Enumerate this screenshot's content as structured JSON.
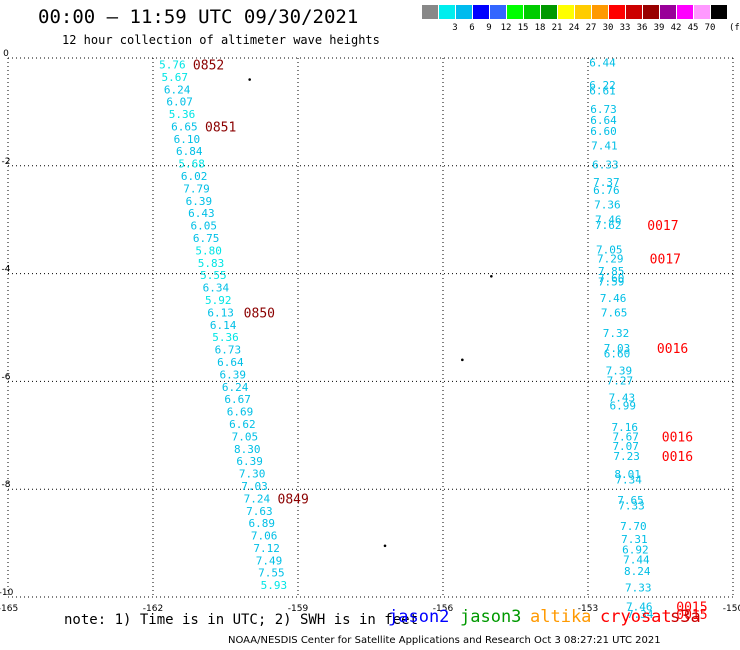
{
  "header": {
    "title": "00:00 – 11:59 UTC 09/30/2021",
    "subtitle": "12 hour collection of altimeter wave heights"
  },
  "legend": {
    "unit": "(ft)",
    "bins": [
      {
        "label": "",
        "color": "#888888"
      },
      {
        "label": "3",
        "color": "#00eeee"
      },
      {
        "label": "6",
        "color": "#00bbee"
      },
      {
        "label": "9",
        "color": "#0000ff"
      },
      {
        "label": "12",
        "color": "#3366ff"
      },
      {
        "label": "15",
        "color": "#00ff00"
      },
      {
        "label": "18",
        "color": "#00cc00"
      },
      {
        "label": "21",
        "color": "#009900"
      },
      {
        "label": "24",
        "color": "#ffff00"
      },
      {
        "label": "27",
        "color": "#ffcc00"
      },
      {
        "label": "30",
        "color": "#ff9900"
      },
      {
        "label": "33",
        "color": "#ff0000"
      },
      {
        "label": "36",
        "color": "#cc0000"
      },
      {
        "label": "39",
        "color": "#990000"
      },
      {
        "label": "42",
        "color": "#990099"
      },
      {
        "label": "45",
        "color": "#ff00ff"
      },
      {
        "label": "70",
        "color": "#ff99ff"
      },
      {
        "label": "",
        "color": "#000000"
      }
    ]
  },
  "axes": {
    "lon_labels": [
      "-165",
      "-162",
      "-159",
      "-156",
      "-153",
      "-150"
    ],
    "lat_labels": [
      "0",
      "-2",
      "-4",
      "-6",
      "-8",
      "-10"
    ]
  },
  "chart_data": {
    "type": "scatter",
    "xlim": [
      -165,
      -150
    ],
    "ylim": [
      -10,
      0
    ],
    "grid": true,
    "tracks": [
      {
        "color": "#00bfe6",
        "points": [
          {
            "x": -161.6,
            "y": -0.12,
            "v": "5.76",
            "c": "#00e5e5"
          },
          {
            "x": -161.55,
            "y": -0.35,
            "v": "5.67",
            "c": "#00e5e5"
          },
          {
            "x": -161.5,
            "y": -0.58,
            "v": "6.24",
            "c": "#00bfe6"
          },
          {
            "x": -161.45,
            "y": -0.81,
            "v": "6.07",
            "c": "#00bfe6"
          },
          {
            "x": -161.4,
            "y": -1.04,
            "v": "5.36",
            "c": "#00e5e5"
          },
          {
            "x": -161.35,
            "y": -1.27,
            "v": "6.65",
            "c": "#00bfe6"
          },
          {
            "x": -161.3,
            "y": -1.5,
            "v": "6.10",
            "c": "#00bfe6"
          },
          {
            "x": -161.25,
            "y": -1.73,
            "v": "6.84",
            "c": "#00bfe6"
          },
          {
            "x": -161.2,
            "y": -1.96,
            "v": "5.68",
            "c": "#00e5e5"
          },
          {
            "x": -161.15,
            "y": -2.19,
            "v": "6.02",
            "c": "#00bfe6"
          },
          {
            "x": -161.1,
            "y": -2.42,
            "v": "7.79",
            "c": "#00bfe6"
          },
          {
            "x": -161.05,
            "y": -2.65,
            "v": "6.39",
            "c": "#00bfe6"
          },
          {
            "x": -161.0,
            "y": -2.88,
            "v": "6.43",
            "c": "#00bfe6"
          },
          {
            "x": -160.95,
            "y": -3.11,
            "v": "6.05",
            "c": "#00bfe6"
          },
          {
            "x": -160.9,
            "y": -3.34,
            "v": "6.75",
            "c": "#00bfe6"
          },
          {
            "x": -160.85,
            "y": -3.57,
            "v": "5.80",
            "c": "#00e5e5"
          },
          {
            "x": -160.8,
            "y": -3.8,
            "v": "5.83",
            "c": "#00e5e5"
          },
          {
            "x": -160.75,
            "y": -4.03,
            "v": "5.55",
            "c": "#00e5e5"
          },
          {
            "x": -160.7,
            "y": -4.26,
            "v": "6.34",
            "c": "#00bfe6"
          },
          {
            "x": -160.65,
            "y": -4.49,
            "v": "5.92",
            "c": "#00e5e5"
          },
          {
            "x": -160.6,
            "y": -4.72,
            "v": "6.13",
            "c": "#00bfe6"
          },
          {
            "x": -160.55,
            "y": -4.95,
            "v": "6.14",
            "c": "#00bfe6"
          },
          {
            "x": -160.5,
            "y": -5.18,
            "v": "5.36",
            "c": "#00e5e5"
          },
          {
            "x": -160.45,
            "y": -5.41,
            "v": "6.73",
            "c": "#00bfe6"
          },
          {
            "x": -160.4,
            "y": -5.64,
            "v": "6.64",
            "c": "#00bfe6"
          },
          {
            "x": -160.35,
            "y": -5.87,
            "v": "6.39",
            "c": "#00bfe6"
          },
          {
            "x": -160.3,
            "y": -6.1,
            "v": "6.24",
            "c": "#00bfe6"
          },
          {
            "x": -160.25,
            "y": -6.33,
            "v": "6.67",
            "c": "#00bfe6"
          },
          {
            "x": -160.2,
            "y": -6.56,
            "v": "6.69",
            "c": "#00bfe6"
          },
          {
            "x": -160.15,
            "y": -6.79,
            "v": "6.62",
            "c": "#00bfe6"
          },
          {
            "x": -160.1,
            "y": -7.02,
            "v": "7.05",
            "c": "#00bfe6"
          },
          {
            "x": -160.05,
            "y": -7.25,
            "v": "8.30",
            "c": "#00bfe6"
          },
          {
            "x": -160.0,
            "y": -7.48,
            "v": "6.39",
            "c": "#00bfe6"
          },
          {
            "x": -159.95,
            "y": -7.71,
            "v": "7.30",
            "c": "#00bfe6"
          },
          {
            "x": -159.9,
            "y": -7.94,
            "v": "7.03",
            "c": "#00bfe6"
          },
          {
            "x": -159.85,
            "y": -8.17,
            "v": "7.24",
            "c": "#00bfe6"
          },
          {
            "x": -159.8,
            "y": -8.4,
            "v": "7.63",
            "c": "#00bfe6"
          },
          {
            "x": -159.75,
            "y": -8.63,
            "v": "6.89",
            "c": "#00bfe6"
          },
          {
            "x": -159.7,
            "y": -8.86,
            "v": "7.06",
            "c": "#00bfe6"
          },
          {
            "x": -159.65,
            "y": -9.09,
            "v": "7.12",
            "c": "#00bfe6"
          },
          {
            "x": -159.6,
            "y": -9.32,
            "v": "7.49",
            "c": "#00bfe6"
          },
          {
            "x": -159.55,
            "y": -9.55,
            "v": "7.55",
            "c": "#00bfe6"
          },
          {
            "x": -159.5,
            "y": -9.78,
            "v": "5.93",
            "c": "#00e5e5"
          }
        ],
        "times": [
          {
            "x": -160.85,
            "y": -0.12,
            "t": "0852",
            "c": "#8b0000"
          },
          {
            "x": -160.6,
            "y": -1.27,
            "t": "0851",
            "c": "#8b0000"
          },
          {
            "x": -159.8,
            "y": -4.72,
            "t": "0850",
            "c": "#8b0000"
          },
          {
            "x": -159.1,
            "y": -8.17,
            "t": "0849",
            "c": "#8b0000"
          }
        ]
      },
      {
        "color": "#00bfe6",
        "points": [
          {
            "x": -152.7,
            "y": -0.08,
            "v": "6.44",
            "c": "#00bfe6"
          },
          {
            "x": -152.7,
            "y": -0.5,
            "v": "6.22",
            "c": "#00bfe6"
          },
          {
            "x": -152.7,
            "y": -0.6,
            "v": "6.61",
            "c": "#00bfe6"
          },
          {
            "x": -152.68,
            "y": -0.95,
            "v": "6.73",
            "c": "#00bfe6"
          },
          {
            "x": -152.68,
            "y": -1.15,
            "v": "6.64",
            "c": "#00bfe6"
          },
          {
            "x": -152.68,
            "y": -1.35,
            "v": "6.60",
            "c": "#00bfe6"
          },
          {
            "x": -152.66,
            "y": -1.62,
            "v": "7.41",
            "c": "#00bfe6"
          },
          {
            "x": -152.64,
            "y": -1.98,
            "v": "6.33",
            "c": "#00bfe6"
          },
          {
            "x": -152.62,
            "y": -2.3,
            "v": "7.37",
            "c": "#00bfe6"
          },
          {
            "x": -152.62,
            "y": -2.45,
            "v": "6.76",
            "c": "#00bfe6"
          },
          {
            "x": -152.6,
            "y": -2.72,
            "v": "7.36",
            "c": "#00bfe6"
          },
          {
            "x": -152.58,
            "y": -3.0,
            "v": "7.46",
            "c": "#00bfe6"
          },
          {
            "x": -152.58,
            "y": -3.1,
            "v": "7.62",
            "c": "#00bfe6"
          },
          {
            "x": -152.56,
            "y": -3.55,
            "v": "7.05",
            "c": "#00bfe6"
          },
          {
            "x": -152.54,
            "y": -3.72,
            "v": "7.29",
            "c": "#00bfe6"
          },
          {
            "x": -152.52,
            "y": -3.95,
            "v": "7.85",
            "c": "#00bfe6"
          },
          {
            "x": -152.52,
            "y": -4.08,
            "v": "7.60",
            "c": "#00bfe6"
          },
          {
            "x": -152.52,
            "y": -4.15,
            "v": "7.59",
            "c": "#00bfe6"
          },
          {
            "x": -152.48,
            "y": -4.45,
            "v": "7.46",
            "c": "#00bfe6"
          },
          {
            "x": -152.46,
            "y": -4.72,
            "v": "7.65",
            "c": "#00bfe6"
          },
          {
            "x": -152.42,
            "y": -5.1,
            "v": "7.32",
            "c": "#00bfe6"
          },
          {
            "x": -152.4,
            "y": -5.38,
            "v": "7.03",
            "c": "#00bfe6"
          },
          {
            "x": -152.4,
            "y": -5.48,
            "v": "6.60",
            "c": "#00bfe6"
          },
          {
            "x": -152.36,
            "y": -5.8,
            "v": "7.39",
            "c": "#00bfe6"
          },
          {
            "x": -152.34,
            "y": -5.98,
            "v": "7.27",
            "c": "#00bfe6"
          },
          {
            "x": -152.3,
            "y": -6.3,
            "v": "7.43",
            "c": "#00bfe6"
          },
          {
            "x": -152.28,
            "y": -6.45,
            "v": "6.99",
            "c": "#00bfe6"
          },
          {
            "x": -152.24,
            "y": -6.85,
            "v": "7.16",
            "c": "#00bfe6"
          },
          {
            "x": -152.22,
            "y": -7.02,
            "v": "7.67",
            "c": "#00bfe6"
          },
          {
            "x": -152.22,
            "y": -7.2,
            "v": "7.07",
            "c": "#00bfe6"
          },
          {
            "x": -152.2,
            "y": -7.38,
            "v": "7.23",
            "c": "#00bfe6"
          },
          {
            "x": -152.18,
            "y": -7.72,
            "v": "8.01",
            "c": "#00bfe6"
          },
          {
            "x": -152.16,
            "y": -7.82,
            "v": "7.34",
            "c": "#00bfe6"
          },
          {
            "x": -152.12,
            "y": -8.2,
            "v": "7.65",
            "c": "#00bfe6"
          },
          {
            "x": -152.1,
            "y": -8.3,
            "v": "7.33",
            "c": "#00bfe6"
          },
          {
            "x": -152.06,
            "y": -8.68,
            "v": "7.70",
            "c": "#00bfe6"
          },
          {
            "x": -152.04,
            "y": -8.92,
            "v": "7.31",
            "c": "#00bfe6"
          },
          {
            "x": -152.02,
            "y": -9.12,
            "v": "6.92",
            "c": "#00bfe6"
          },
          {
            "x": -152.0,
            "y": -9.3,
            "v": "7.44",
            "c": "#00bfe6"
          },
          {
            "x": -151.98,
            "y": -9.52,
            "v": "8.24",
            "c": "#00bfe6"
          },
          {
            "x": -151.96,
            "y": -9.82,
            "v": "7.33",
            "c": "#00bfe6"
          },
          {
            "x": -151.94,
            "y": -10.18,
            "v": "7.46",
            "c": "#00bfe6"
          },
          {
            "x": -151.92,
            "y": -10.32,
            "v": "7.34",
            "c": "#00bfe6"
          }
        ],
        "times": [
          {
            "x": -151.45,
            "y": -3.1,
            "t": "0017",
            "c": "#ff0000"
          },
          {
            "x": -151.4,
            "y": -3.72,
            "t": "0017",
            "c": "#ff0000"
          },
          {
            "x": -151.25,
            "y": -5.38,
            "t": "0016",
            "c": "#ff0000"
          },
          {
            "x": -151.15,
            "y": -7.02,
            "t": "0016",
            "c": "#ff0000"
          },
          {
            "x": -151.15,
            "y": -7.38,
            "t": "0016",
            "c": "#ff0000"
          },
          {
            "x": -150.85,
            "y": -10.18,
            "t": "0015",
            "c": "#ff0000"
          },
          {
            "x": -150.85,
            "y": -10.32,
            "t": "0015",
            "c": "#ff0000"
          }
        ]
      }
    ],
    "islands": [
      {
        "x": -160.0,
        "y": -0.4
      },
      {
        "x": -155.0,
        "y": -4.05
      },
      {
        "x": -155.6,
        "y": -5.6
      },
      {
        "x": -157.2,
        "y": -9.05
      }
    ]
  },
  "footer": {
    "note": "note: 1) Time is in UTC; 2) SWH is in feet",
    "satellites": [
      {
        "name": "jason2",
        "color": "#0000ff"
      },
      {
        "name": "jason3",
        "color": "#009900"
      },
      {
        "name": "altika",
        "color": "#ff9900"
      },
      {
        "name": "cryosat",
        "color": "#ff0000"
      },
      {
        "name": "s3a",
        "color": "#cc0000"
      }
    ],
    "credit": "NOAA/NESDIS Center for Satellite Applications and Research   Oct  3 08:27:21 UTC 2021"
  }
}
